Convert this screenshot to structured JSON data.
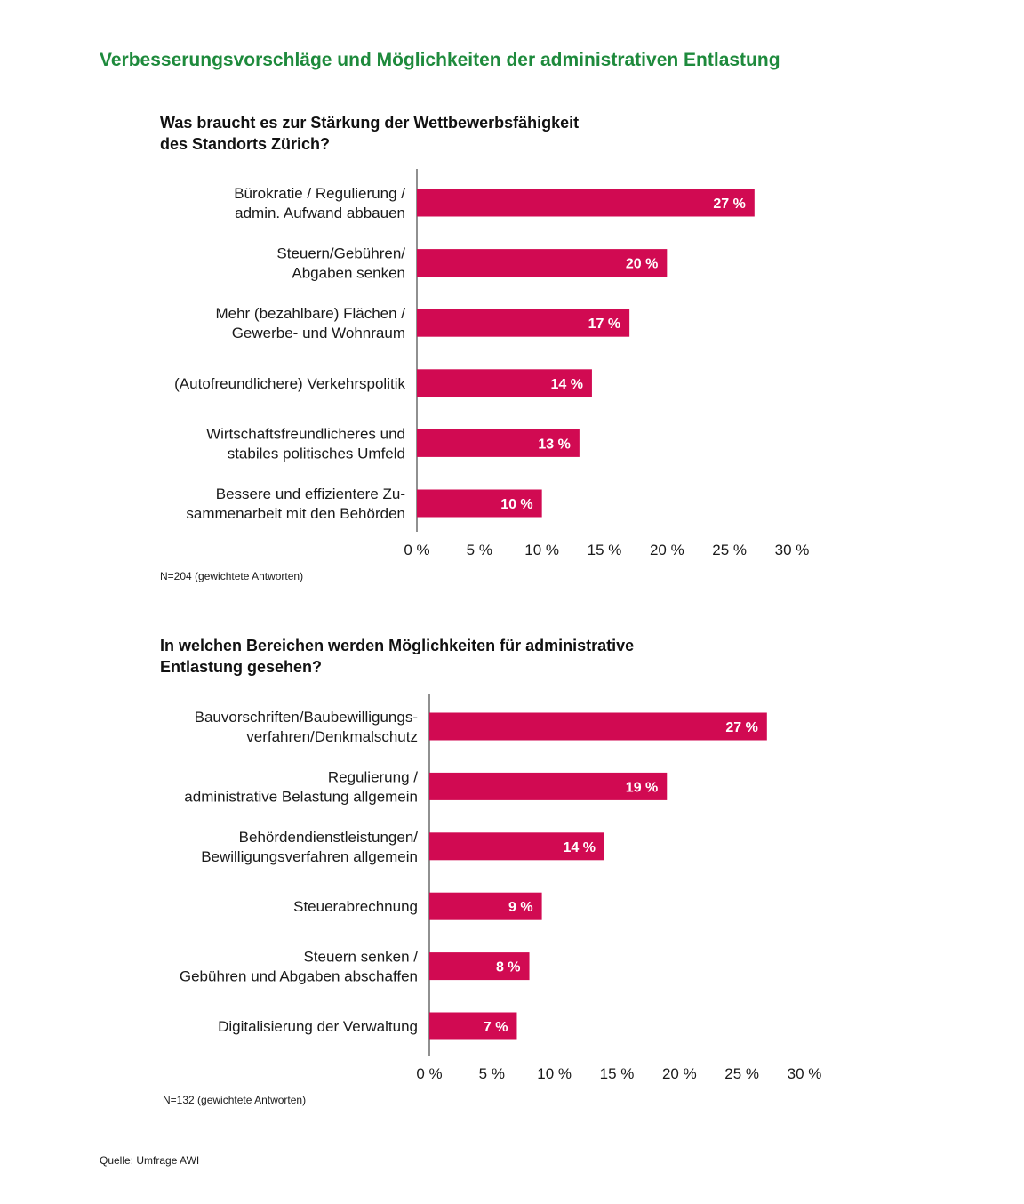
{
  "page": {
    "title": "Verbesserungsvorschläge und Möglichkeiten der administrativen Entlastung",
    "source": "Quelle: Umfrage AWI"
  },
  "colors": {
    "title": "#1e8a3c",
    "bar": "#d10a52",
    "bar_text": "#ffffff"
  },
  "chart_data": [
    {
      "type": "bar",
      "orientation": "horizontal",
      "title_lines": [
        "Was braucht es zur Stärkung der Wettbewerbsfähigkeit",
        "des Standorts Zürich?"
      ],
      "categories": [
        [
          "Bürokratie / Regulierung /",
          "admin. Aufwand abbauen"
        ],
        [
          "Steuern/Gebühren/",
          "Abgaben senken"
        ],
        [
          "Mehr (bezahlbare) Flächen /",
          "Gewerbe- und Wohnraum"
        ],
        [
          "(Autofreundlichere) Verkehrspolitik"
        ],
        [
          "Wirtschaftsfreundlicheres und",
          "stabiles politisches Umfeld"
        ],
        [
          "Bessere und effizientere Zu-",
          "sammenarbeit mit den Behörden"
        ]
      ],
      "values": [
        27,
        20,
        17,
        14,
        13,
        10
      ],
      "value_labels": [
        "27 %",
        "20 %",
        "17 %",
        "14 %",
        "13 %",
        "10 %"
      ],
      "xlim": [
        0,
        30
      ],
      "xticks": [
        "0 %",
        "5 %",
        "10 %",
        "15 %",
        "20 %",
        "25 %",
        "30 %"
      ],
      "grid": false,
      "note": "N=204 (gewichtete Antworten)"
    },
    {
      "type": "bar",
      "orientation": "horizontal",
      "title_lines": [
        "In welchen Bereichen werden Möglichkeiten für administrative",
        "Entlastung gesehen?"
      ],
      "categories": [
        [
          "Bauvorschriften/Baubewilligungs-",
          "verfahren/Denkmalschutz"
        ],
        [
          "Regulierung /",
          "administrative Belastung allgemein"
        ],
        [
          "Behördendienstleistungen/",
          "Bewilligungsverfahren allgemein"
        ],
        [
          "Steuerabrechnung"
        ],
        [
          "Steuern senken /",
          "Gebühren und Abgaben abschaffen"
        ],
        [
          "Digitalisierung der Verwaltung"
        ]
      ],
      "values": [
        27,
        19,
        14,
        9,
        8,
        7
      ],
      "value_labels": [
        "27 %",
        "19 %",
        "14 %",
        "9 %",
        "8 %",
        "7 %"
      ],
      "xlim": [
        0,
        30
      ],
      "xticks": [
        "0 %",
        "5 %",
        "10 %",
        "15 %",
        "20 %",
        "25 %",
        "30 %"
      ],
      "grid": false,
      "note": "N=132 (gewichtete Antworten)"
    }
  ]
}
